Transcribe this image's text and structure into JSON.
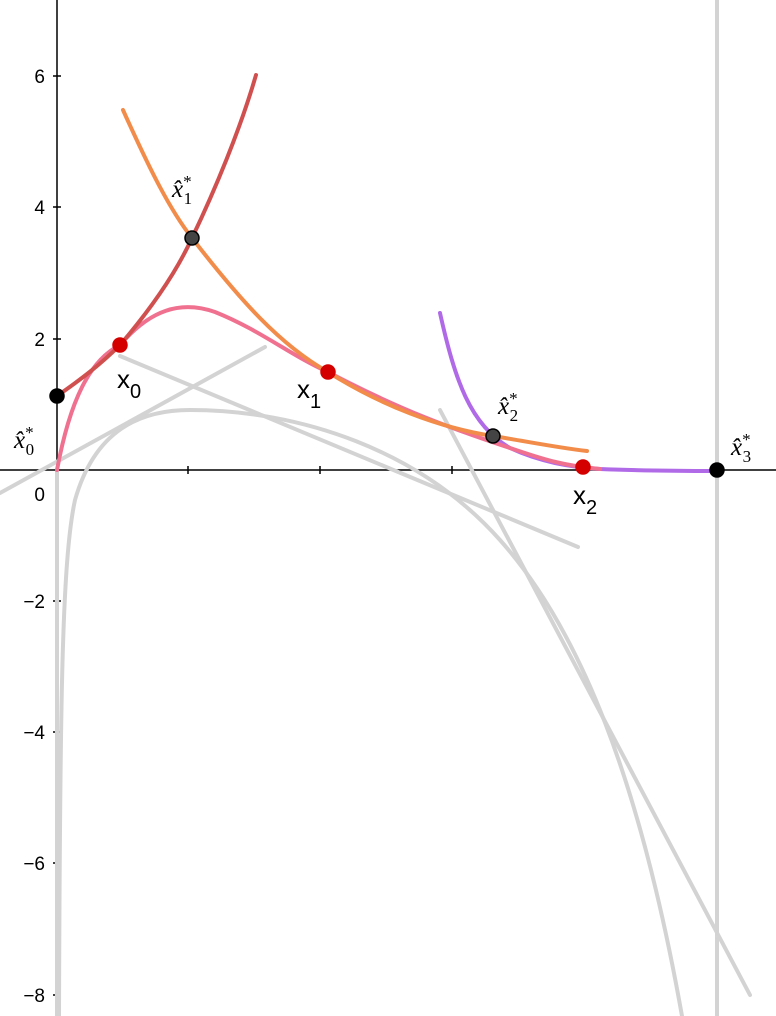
{
  "axis": {
    "y_tick_labels": [
      "6",
      "4",
      "2",
      "0",
      "−2",
      "−4",
      "−6",
      "−8"
    ]
  },
  "points": [
    {
      "base": "x̂",
      "sub": "0",
      "sup": "*"
    },
    {
      "base": "x",
      "sub": "0"
    },
    {
      "base": "x̂",
      "sub": "1",
      "sup": "*"
    },
    {
      "base": "x",
      "sub": "1"
    },
    {
      "base": "x̂",
      "sub": "2",
      "sup": "*"
    },
    {
      "base": "x",
      "sub": "2"
    },
    {
      "base": "x̂",
      "sub": "3",
      "sup": "*"
    }
  ]
}
